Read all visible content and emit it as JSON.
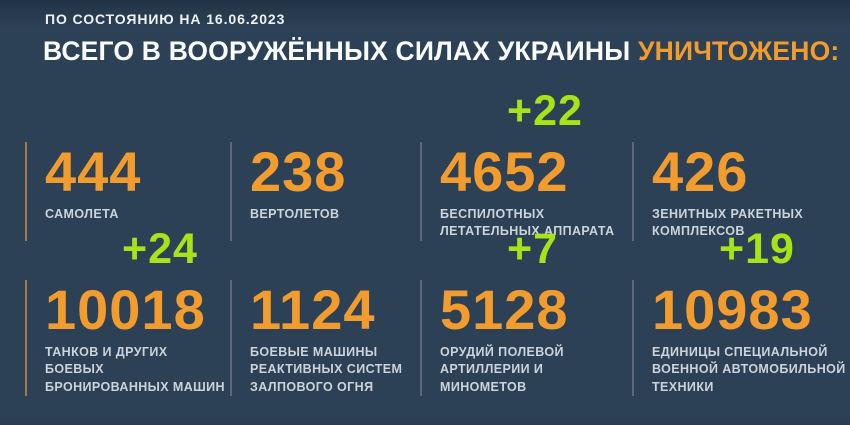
{
  "header": {
    "date_label": "ПО СОСТОЯНИЮ НА 16.06.2023",
    "title_main": "ВСЕГО В ВООРУЖЁННЫХ СИЛАХ УКРАИНЫ",
    "title_highlight": "УНИЧТОЖЕНО:"
  },
  "stats": [
    {
      "value": "444",
      "label": "САМОЛЕТА"
    },
    {
      "value": "238",
      "label": "ВЕРТОЛЕТОВ"
    },
    {
      "value": "4652",
      "delta": "+22",
      "label": "БЕСПИЛОТНЫХ\nЛЕТАТЕЛЬНЫХ АППАРАТА"
    },
    {
      "value": "426",
      "label": "ЗЕНИТНЫХ РАКЕТНЫХ\nКОМПЛЕКСОВ"
    },
    {
      "value": "10018",
      "delta": "+24",
      "label": "ТАНКОВ И ДРУГИХ БОЕВЫХ\nБРОНИРОВАННЫХ МАШИН"
    },
    {
      "value": "1124",
      "label": "БОЕВЫЕ МАШИНЫ\nРЕАКТИВНЫХ СИСТЕМ\nЗАЛПОВОГО ОГНЯ"
    },
    {
      "value": "5128",
      "delta": "+7",
      "label": "ОРУДИЙ ПОЛЕВОЙ\nАРТИЛЛЕРИИ И МИНОМЕТОВ"
    },
    {
      "value": "10983",
      "delta": "+19",
      "label": "ЕДИНИЦЫ СПЕЦИАЛЬНОЙ\nВОЕННОЙ АВТОМОБИЛЬНОЙ\nТЕХНИКИ"
    }
  ],
  "colors": {
    "background": "#2d4156",
    "accent_orange": "#f39c2e",
    "delta_green": "#a6e418",
    "label_gray": "#ccd3da",
    "divider_gray": "#5c6877",
    "divider_accent": "#a5793f"
  },
  "chart_data": {
    "type": "table",
    "title": "ВСЕГО В ВООРУЖЁННЫХ СИЛАХ УКРАИНЫ УНИЧТОЖЕНО:",
    "subtitle": "ПО СОСТОЯНИЮ НА 16.06.2023",
    "categories": [
      "САМОЛЕТА",
      "ВЕРТОЛЕТОВ",
      "БЕСПИЛОТНЫХ ЛЕТАТЕЛЬНЫХ АППАРАТА",
      "ЗЕНИТНЫХ РАКЕТНЫХ КОМПЛЕКСОВ",
      "ТАНКОВ И ДРУГИХ БОЕВЫХ БРОНИРОВАННЫХ МАШИН",
      "БОЕВЫЕ МАШИНЫ РЕАКТИВНЫХ СИСТЕМ ЗАЛПОВОГО ОГНЯ",
      "ОРУДИЙ ПОЛЕВОЙ АРТИЛЛЕРИИ И МИНОМЕТОВ",
      "ЕДИНИЦЫ СПЕЦИАЛЬНОЙ ВОЕННОЙ АВТОМОБИЛЬНОЙ ТЕХНИКИ"
    ],
    "values": [
      444,
      238,
      4652,
      426,
      10018,
      1124,
      5128,
      10983
    ],
    "deltas": [
      null,
      null,
      22,
      null,
      24,
      null,
      7,
      19
    ],
    "layout": "2 rows x 4 columns, deltas shown in green above the updated values"
  }
}
